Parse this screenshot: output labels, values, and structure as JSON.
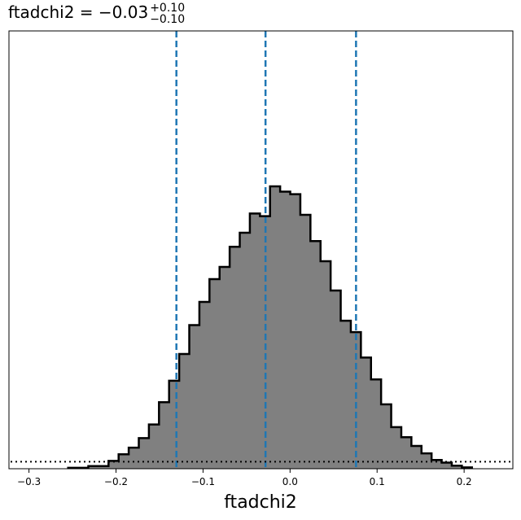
{
  "chart_data": {
    "type": "histogram",
    "title": {
      "prefix": "ftadchi2 = −0.03",
      "upper": "+0.10",
      "lower": "−0.10"
    },
    "xlabel": "ftadchi2",
    "ylabel": "",
    "xlim": [
      -0.323,
      0.256
    ],
    "ylim": [
      0,
      100
    ],
    "x_ticks": [
      -0.3,
      -0.2,
      -0.1,
      0.0,
      0.1,
      0.2
    ],
    "x_tick_labels": [
      "−0.3",
      "−0.2",
      "−0.1",
      "0.0",
      "0.1",
      "0.2"
    ],
    "bin_edges": [
      -0.255,
      -0.2434,
      -0.2318,
      -0.2202,
      -0.2086,
      -0.197,
      -0.1854,
      -0.1738,
      -0.1622,
      -0.1506,
      -0.139,
      -0.1274,
      -0.1158,
      -0.1042,
      -0.0926,
      -0.081,
      -0.0694,
      -0.0578,
      -0.0462,
      -0.0346,
      -0.023,
      -0.0114,
      0.0002,
      0.0118,
      0.0234,
      0.035,
      0.0466,
      0.0582,
      0.0698,
      0.0814,
      0.093,
      0.1046,
      0.1162,
      0.1278,
      0.1394,
      0.151,
      0.1626,
      0.1742,
      0.1858,
      0.1974,
      0.209
    ],
    "counts": [
      0.2,
      0.2,
      0.6,
      0.6,
      1.8,
      3.3,
      4.8,
      7.0,
      10.1,
      15.2,
      20.1,
      26.2,
      32.8,
      38.1,
      43.3,
      46.1,
      50.7,
      53.9,
      58.3,
      57.7,
      64.5,
      63.3,
      62.7,
      58.0,
      52.0,
      47.4,
      40.7,
      33.8,
      31.2,
      25.4,
      20.4,
      14.7,
      9.5,
      7.2,
      5.2,
      3.5,
      2.0,
      1.4,
      0.7,
      0.3
    ],
    "vlines": [
      -0.1306,
      -0.0282,
      0.0758
    ],
    "prior_level": 1.6,
    "hist_fill": "#808080",
    "hist_edge": "#000000",
    "vline_color": "#1f77b4",
    "prior_color": "#000000",
    "grid": false
  }
}
